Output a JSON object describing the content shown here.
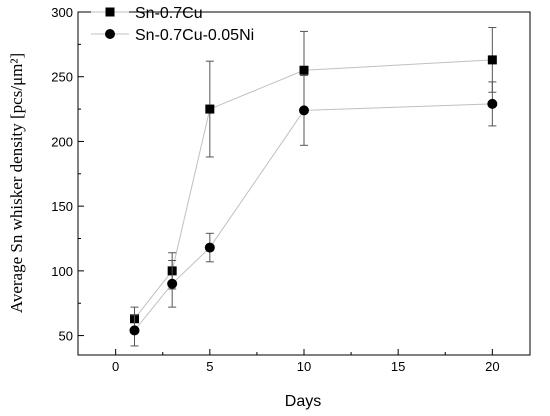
{
  "chart_data": {
    "type": "line",
    "xlabel": "Days",
    "ylabel": "Average Sn whisker density [pcs/μm²]",
    "xlim": [
      -2,
      22
    ],
    "ylim": [
      35,
      300
    ],
    "xticks": [
      0,
      5,
      10,
      15,
      20
    ],
    "yticks": [
      50,
      100,
      150,
      200,
      250,
      300
    ],
    "grid": false,
    "legend_position": "top-left",
    "series": [
      {
        "name": "Sn-0.7Cu",
        "marker": "square",
        "color": "#000000",
        "line_color": "#c0c0c0",
        "x": [
          1,
          3,
          5,
          10,
          20
        ],
        "y": [
          63,
          100,
          225,
          255,
          263
        ],
        "err": [
          9,
          14,
          37,
          30,
          25
        ]
      },
      {
        "name": "Sn-0.7Cu-0.05Ni",
        "marker": "circle",
        "color": "#000000",
        "line_color": "#c0c0c0",
        "x": [
          1,
          3,
          5,
          10,
          20
        ],
        "y": [
          54,
          90,
          118,
          224,
          229
        ],
        "err": [
          12,
          18,
          11,
          27,
          17
        ]
      }
    ]
  }
}
